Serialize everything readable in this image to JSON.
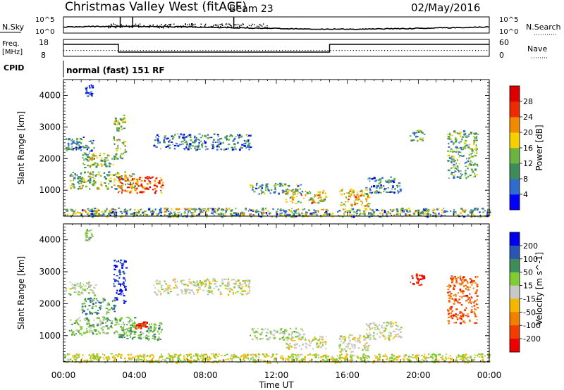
{
  "header": {
    "title": "Christmas Valley West (fitACF)",
    "beam": "Beam 23",
    "date": "02/May/2016"
  },
  "strip_labels": {
    "nsky": "N.Sky",
    "nsearch": "N.Search",
    "freq": "Freq.",
    "freq_unit": "[MHz]",
    "nave": "Nave",
    "cpid": "CPID",
    "cpid_value": "normal (fast) 151 RF",
    "noise_top_left": "10^5",
    "noise_bottom_left": "10^0",
    "noise_top_right": "10^5",
    "noise_bottom_right": "10^0",
    "freq_top": "18",
    "freq_bottom": "8",
    "nave_top": "60",
    "nave_bottom": "0"
  },
  "panels": {
    "ylabel": "Slant Range [km]",
    "xlabel": "Time UT",
    "xticks": [
      "00:00",
      "04:00",
      "08:00",
      "12:00",
      "16:00",
      "20:00",
      "00:00"
    ],
    "yticks": [
      "1000",
      "2000",
      "3000",
      "4000"
    ]
  },
  "chart_data": [
    {
      "type": "heatmap",
      "title": "",
      "quantity": "Power",
      "colorbar_label": "Power [dB]",
      "colorbar_ticks": [
        "4",
        "8",
        "12",
        "16",
        "20",
        "24",
        "28"
      ],
      "colorbar_range": [
        0,
        32
      ],
      "colorbar_colors": [
        "#0000ff",
        "#2f6cd0",
        "#3d8c5a",
        "#6cb33f",
        "#f4d000",
        "#f28a00",
        "#ee2a00",
        "#dd0000"
      ],
      "xlabel": "Time UT",
      "ylabel": "Slant Range [km]",
      "xlim": [
        0,
        24
      ],
      "ylim": [
        180,
        4500
      ],
      "regions": [
        {
          "t": [
            1.2,
            1.6
          ],
          "r": [
            4000,
            4350
          ],
          "v": 6
        },
        {
          "t": [
            0.1,
            1.8
          ],
          "r": [
            2250,
            2700
          ],
          "v": 8
        },
        {
          "t": [
            1.0,
            2.9
          ],
          "r": [
            1700,
            2200
          ],
          "v": 14
        },
        {
          "t": [
            0.3,
            4.0
          ],
          "r": [
            1050,
            1600
          ],
          "v": 14
        },
        {
          "t": [
            2.8,
            3.5
          ],
          "r": [
            2000,
            3400
          ],
          "v": 14
        },
        {
          "t": [
            3.0,
            5.6
          ],
          "r": [
            900,
            1450
          ],
          "v": 24
        },
        {
          "t": [
            5.0,
            10.5
          ],
          "r": [
            2300,
            2800
          ],
          "v": 8
        },
        {
          "t": [
            10.5,
            13.5
          ],
          "r": [
            900,
            1250
          ],
          "v": 10
        },
        {
          "t": [
            12.5,
            14.8
          ],
          "r": [
            600,
            1000
          ],
          "v": 18
        },
        {
          "t": [
            15.5,
            17.2
          ],
          "r": [
            500,
            1050
          ],
          "v": 20
        },
        {
          "t": [
            17.0,
            19.0
          ],
          "r": [
            900,
            1450
          ],
          "v": 8
        },
        {
          "t": [
            19.5,
            20.3
          ],
          "r": [
            2550,
            2950
          ],
          "v": 14
        },
        {
          "t": [
            21.6,
            23.3
          ],
          "r": [
            1400,
            2900
          ],
          "v": 12
        },
        {
          "t": [
            0.0,
            24.0
          ],
          "r": [
            180,
            450
          ],
          "v": 10
        }
      ]
    },
    {
      "type": "heatmap",
      "title": "",
      "quantity": "Velocity",
      "colorbar_label": "Velocity [m s^-1]",
      "colorbar_ticks": [
        "200",
        "100",
        "50",
        "15",
        "-15",
        "-50",
        "-100",
        "-200"
      ],
      "colorbar_range": [
        -250,
        250
      ],
      "colorbar_colors": [
        "#0000ee",
        "#2a55b5",
        "#3d8c5a",
        "#7fcc33",
        "#c8c8c8",
        "#f2b800",
        "#f28000",
        "#f23c00",
        "#ee0000"
      ],
      "xlabel": "Time UT",
      "ylabel": "Slant Range [km]",
      "xlim": [
        0,
        24
      ],
      "ylim": [
        180,
        4500
      ],
      "regions": [
        {
          "t": [
            1.2,
            1.6
          ],
          "r": [
            4000,
            4350
          ],
          "v": 40
        },
        {
          "t": [
            0.1,
            1.8
          ],
          "r": [
            2250,
            2700
          ],
          "v": 30
        },
        {
          "t": [
            1.0,
            2.9
          ],
          "r": [
            1700,
            2200
          ],
          "v": 120
        },
        {
          "t": [
            0.3,
            4.0
          ],
          "r": [
            1050,
            1600
          ],
          "v": 60
        },
        {
          "t": [
            2.8,
            3.5
          ],
          "r": [
            2000,
            3400
          ],
          "v": 200
        },
        {
          "t": [
            3.0,
            5.6
          ],
          "r": [
            900,
            1450
          ],
          "v": 80
        },
        {
          "t": [
            4.0,
            4.8
          ],
          "r": [
            1250,
            1450
          ],
          "v": -200
        },
        {
          "t": [
            5.0,
            10.5
          ],
          "r": [
            2300,
            2800
          ],
          "v": 0
        },
        {
          "t": [
            10.5,
            13.5
          ],
          "r": [
            900,
            1250
          ],
          "v": 40
        },
        {
          "t": [
            12.5,
            14.8
          ],
          "r": [
            600,
            1000
          ],
          "v": 0
        },
        {
          "t": [
            15.5,
            17.2
          ],
          "r": [
            500,
            1050
          ],
          "v": 0
        },
        {
          "t": [
            17.0,
            19.0
          ],
          "r": [
            900,
            1450
          ],
          "v": 0
        },
        {
          "t": [
            19.5,
            20.3
          ],
          "r": [
            2550,
            2950
          ],
          "v": -200
        },
        {
          "t": [
            21.6,
            23.3
          ],
          "r": [
            1400,
            2900
          ],
          "v": -150
        },
        {
          "t": [
            0.0,
            24.0
          ],
          "r": [
            180,
            450
          ],
          "v": -25
        }
      ]
    }
  ]
}
